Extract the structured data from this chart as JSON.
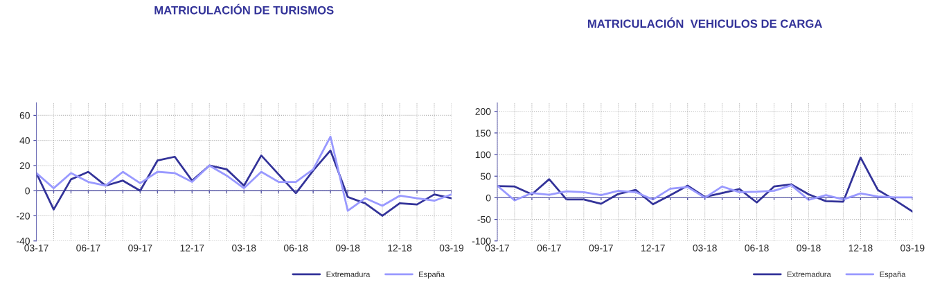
{
  "chart_data": [
    {
      "type": "line",
      "title": "MATRICULACIÓN DE TURISMOS",
      "categories": [
        "03-17",
        null,
        null,
        "06-17",
        null,
        null,
        "09-17",
        null,
        null,
        "12-17",
        null,
        null,
        "03-18",
        null,
        null,
        "06-18",
        null,
        null,
        "09-18",
        null,
        null,
        "12-18",
        null,
        null,
        "03-19"
      ],
      "series": [
        {
          "name": "Extremadura",
          "color": "#333399",
          "values": [
            14,
            -15,
            9,
            15,
            4,
            8,
            0,
            24,
            27,
            8,
            20,
            17,
            4,
            28,
            13,
            -2,
            16,
            32,
            -5,
            -10,
            -20,
            -10,
            -11,
            -3,
            -6
          ]
        },
        {
          "name": "España",
          "color": "#9999ff",
          "values": [
            14,
            2,
            14,
            7,
            4,
            15,
            6,
            15,
            14,
            7,
            20,
            12,
            2,
            15,
            7,
            7,
            17,
            43,
            -16,
            -6,
            -12,
            -4,
            -6,
            -8,
            -3
          ]
        }
      ],
      "ylim": [
        -40,
        70
      ],
      "yticks": [
        -40,
        -20,
        0,
        20,
        40,
        60
      ],
      "grid": true,
      "legend": "bottom right",
      "marker": "none",
      "line_style": "solid",
      "ref_lines": [
        {
          "axis": "y",
          "value": 0,
          "color": "#5a5aa8"
        }
      ]
    },
    {
      "type": "line",
      "title": "MATRICULACIÓN  VEHICULOS DE CARGA",
      "categories": [
        "03-17",
        null,
        null,
        "06-17",
        null,
        null,
        "09-17",
        null,
        null,
        "12-17",
        null,
        null,
        "03-18",
        null,
        null,
        "06-18",
        null,
        null,
        "09-18",
        null,
        null,
        "12-18",
        null,
        null,
        "03-19"
      ],
      "series": [
        {
          "name": "Extremadura",
          "color": "#333399",
          "values": [
            27,
            26,
            8,
            43,
            -4,
            -4,
            -14,
            9,
            18,
            -15,
            6,
            28,
            2,
            11,
            20,
            -11,
            26,
            31,
            8,
            -8,
            -9,
            93,
            18,
            -6,
            -32
          ]
        },
        {
          "name": "España",
          "color": "#9999ff",
          "values": [
            28,
            -6,
            11,
            7,
            15,
            13,
            6,
            16,
            13,
            -4,
            21,
            25,
            0,
            26,
            13,
            14,
            16,
            29,
            -5,
            6,
            -4,
            10,
            3,
            1,
            1
          ]
        }
      ],
      "ylim": [
        -100,
        220
      ],
      "yticks": [
        -100,
        -50,
        0,
        50,
        100,
        150,
        200
      ],
      "grid": true,
      "legend": "bottom right",
      "marker": "none",
      "line_style": "solid",
      "ref_lines": [
        {
          "axis": "y",
          "value": 0,
          "color": "#5a5aa8"
        }
      ]
    }
  ]
}
